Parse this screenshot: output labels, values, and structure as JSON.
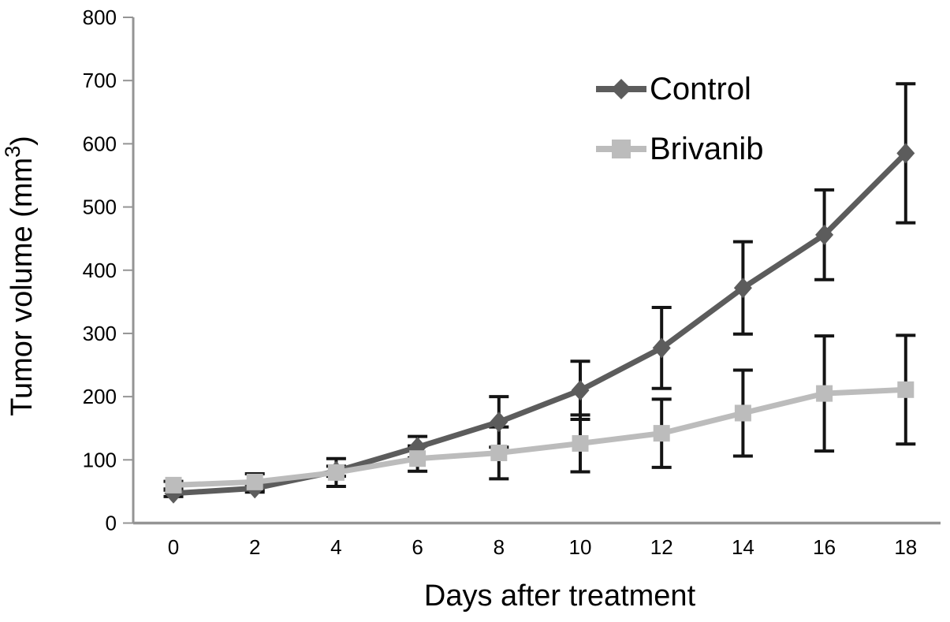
{
  "figure": {
    "background": "#ffffff",
    "text_color": "#000000",
    "axis_color": "#949494",
    "error_bar_color": "#141414",
    "y_axis": {
      "label_prefix": "Tumor volume (mm",
      "label_sup": "3",
      "label_suffix": ")",
      "tick_labels": [
        "0",
        "100",
        "200",
        "300",
        "400",
        "500",
        "600",
        "700",
        "800"
      ]
    },
    "x_axis": {
      "label": "Days after treatment",
      "tick_labels": [
        "0",
        "2",
        "4",
        "6",
        "8",
        "10",
        "12",
        "14",
        "16",
        "18"
      ]
    }
  },
  "chart_data": {
    "type": "line",
    "title": "",
    "xlabel": "Days after treatment",
    "ylabel": "Tumor volume (mm³)",
    "x": [
      0,
      2,
      4,
      6,
      8,
      10,
      12,
      14,
      16,
      18
    ],
    "xlim": [
      0,
      18
    ],
    "ylim": [
      0,
      800
    ],
    "y_tick_step": 100,
    "grid": false,
    "legend_position": "top-right",
    "error_bars": true,
    "series": [
      {
        "name": "Control",
        "marker": "diamond",
        "color": "#5c5c5c",
        "values": [
          47,
          55,
          82,
          120,
          160,
          210,
          277,
          372,
          456,
          585
        ],
        "errors": [
          5,
          6,
          8,
          17,
          40,
          46,
          64,
          73,
          71,
          110
        ]
      },
      {
        "name": "Brivanib",
        "marker": "square",
        "color": "#bcbcbc",
        "values": [
          60,
          65,
          80,
          102,
          111,
          126,
          142,
          174,
          205,
          211
        ],
        "errors": [
          6,
          13,
          22,
          20,
          41,
          45,
          54,
          68,
          91,
          86
        ]
      }
    ]
  }
}
